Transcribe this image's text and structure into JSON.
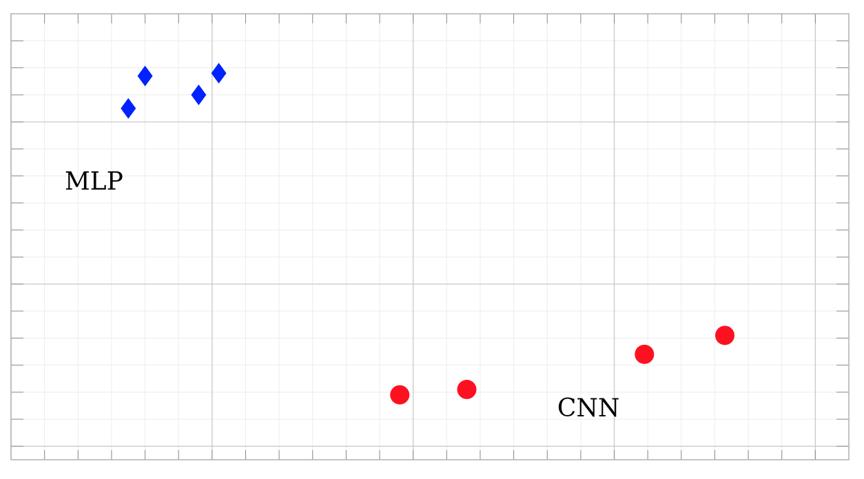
{
  "chart_data": {
    "type": "scatter",
    "title": "",
    "xlabel": "",
    "ylabel": "",
    "xlim": [
      0,
      25
    ],
    "ylim": [
      0,
      16.5
    ],
    "grid": true,
    "legend": "none",
    "series": [
      {
        "marker": "diamond",
        "color": "#0022ff",
        "points": [
          {
            "x": 3.5,
            "y": 13.0
          },
          {
            "x": 4.0,
            "y": 14.2
          },
          {
            "x": 5.6,
            "y": 13.5
          },
          {
            "x": 6.2,
            "y": 14.3
          }
        ]
      },
      {
        "marker": "circle",
        "color": "#ff1020",
        "points": [
          {
            "x": 11.6,
            "y": 2.4
          },
          {
            "x": 13.6,
            "y": 2.6
          },
          {
            "x": 18.9,
            "y": 3.9
          },
          {
            "x": 21.3,
            "y": 4.6
          }
        ]
      }
    ],
    "annotations": [
      {
        "text": "MLP",
        "x": 1.6,
        "y": 10.0
      },
      {
        "text": "CNN",
        "x": 16.3,
        "y": 1.6
      }
    ]
  }
}
